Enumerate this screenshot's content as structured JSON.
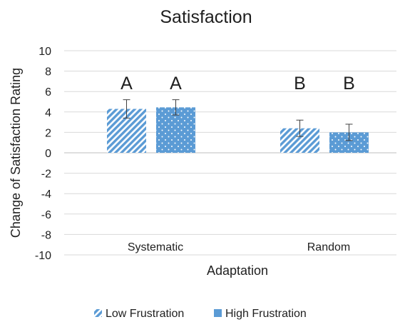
{
  "chart_data": {
    "type": "bar",
    "title": "Satisfaction",
    "xlabel": "Adaptation",
    "ylabel": "Change of Satisfaction Rating",
    "categories": [
      "Systematic",
      "Random"
    ],
    "ylim": [
      -10,
      10
    ],
    "yticks": [
      10,
      8,
      6,
      4,
      2,
      0,
      -2,
      -4,
      -6,
      -8,
      -10
    ],
    "grid": true,
    "legend_position": "bottom",
    "series": [
      {
        "name": "Low Frustration",
        "values": [
          4.3,
          2.4
        ],
        "error": [
          0.9,
          0.8
        ],
        "letters": [
          "A",
          "B"
        ],
        "color": "#5b9bd5",
        "pattern": "diagonal-stripes"
      },
      {
        "name": "High Frustration",
        "values": [
          4.45,
          2.0
        ],
        "error": [
          0.75,
          0.8
        ],
        "letters": [
          "A",
          "B"
        ],
        "color": "#5b9bd5",
        "pattern": "white-dots"
      }
    ]
  }
}
